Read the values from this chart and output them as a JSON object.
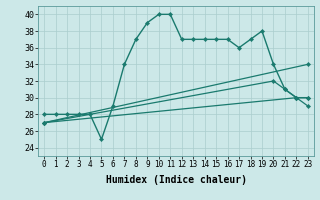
{
  "xlabel": "Humidex (Indice chaleur)",
  "bg_color": "#cce8e8",
  "grid_color": "#aacece",
  "line_color": "#1a7a6e",
  "xlim": [
    -0.5,
    23.5
  ],
  "ylim": [
    23,
    41
  ],
  "xticks": [
    0,
    1,
    2,
    3,
    4,
    5,
    6,
    7,
    8,
    9,
    10,
    11,
    12,
    13,
    14,
    15,
    16,
    17,
    18,
    19,
    20,
    21,
    22,
    23
  ],
  "yticks": [
    24,
    26,
    28,
    30,
    32,
    34,
    36,
    38,
    40
  ],
  "lines": [
    {
      "x": [
        0,
        1,
        2,
        3,
        4,
        5,
        6,
        7,
        8,
        9,
        10,
        11,
        12,
        13,
        14,
        15,
        16,
        17,
        18,
        19,
        20,
        21,
        22,
        23
      ],
      "y": [
        28,
        28,
        28,
        28,
        28,
        25,
        29,
        34,
        37,
        39,
        40,
        40,
        37,
        37,
        37,
        37,
        37,
        36,
        37,
        38,
        34,
        31,
        30,
        30
      ]
    },
    {
      "x": [
        0,
        23
      ],
      "y": [
        27,
        34
      ]
    },
    {
      "x": [
        0,
        20,
        21,
        22,
        23
      ],
      "y": [
        27,
        32,
        31,
        30,
        30
      ]
    },
    {
      "x": [
        0,
        22,
        23
      ],
      "y": [
        27,
        30,
        29
      ]
    }
  ],
  "marker_lines": [
    0
  ],
  "xlabel_fontsize": 7,
  "tick_fontsize": 5.5
}
